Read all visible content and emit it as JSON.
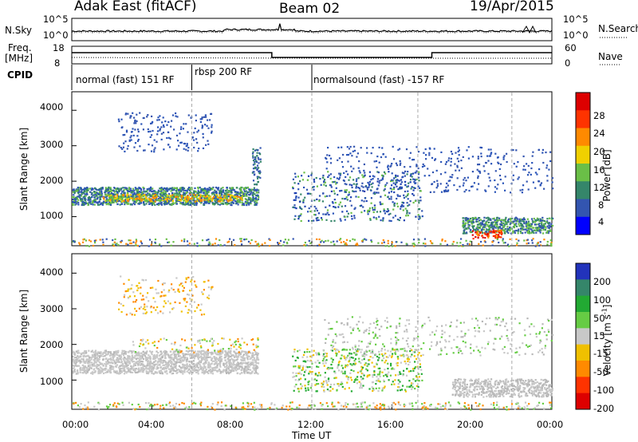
{
  "header": {
    "radar": "Adak East (fitACF)",
    "beam": "Beam 02",
    "date": "19/Apr/2015"
  },
  "noise_panel": {
    "left_label": "N.Sky",
    "right_label": "N.Search",
    "left_ticks": [
      "10^5",
      "10^0"
    ],
    "right_ticks": [
      "10^5",
      "10^0"
    ]
  },
  "freq_panel": {
    "left_label_line1": "Freq.",
    "left_label_line2": "[MHz]",
    "right_label": "Nave",
    "left_ticks": [
      "18",
      "8"
    ],
    "right_ticks": [
      "60",
      "0"
    ]
  },
  "cpid": {
    "label": "CPID",
    "segments": [
      {
        "name": "normal (fast) 151 RF",
        "start_hr": 0.0,
        "end_hr": 6.0
      },
      {
        "name": "rbsp 200 RF",
        "start_hr": 6.0,
        "end_hr": 12.0
      },
      {
        "name": "normalsound (fast) -157 RF",
        "start_hr": 12.0,
        "end_hr": 24.0
      }
    ]
  },
  "chart_data": [
    {
      "type": "heatmap",
      "title": "",
      "xlabel": "",
      "ylabel": "Slant Range [km]",
      "xlim": [
        0,
        24
      ],
      "ylim": [
        180,
        4500
      ],
      "y_ticks": [
        "4000",
        "3000",
        "2000",
        "1000"
      ],
      "colorbar": {
        "label": "Power [dB]",
        "ticks": [
          "28",
          "24",
          "20",
          "16",
          "12",
          "8",
          "4"
        ],
        "colors": [
          "#0000ff",
          "#3355b0",
          "#35866a",
          "#6abf47",
          "#f0d000",
          "#ff8a00",
          "#ff3300",
          "#dd0000"
        ]
      },
      "features": [
        {
          "name": "main band",
          "start_hr": 0.0,
          "end_hr": 9.3,
          "range_km_start": 1450,
          "range_km_end": 1850,
          "peak_dB": 22
        },
        {
          "name": "upper arc",
          "start_hr": 2.3,
          "end_hr": 7.0,
          "range_km_start": 2900,
          "range_km_end": 3900,
          "peak_dB": 8
        },
        {
          "name": "afternoon patches",
          "start_hr": 11.0,
          "end_hr": 17.5,
          "range_km_start": 900,
          "range_km_end": 1600,
          "peak_dB": 12
        },
        {
          "name": "evening band",
          "start_hr": 19.5,
          "end_hr": 24.0,
          "range_km_start": 600,
          "range_km_end": 1000,
          "peak_dB": 30
        }
      ]
    },
    {
      "type": "heatmap",
      "title": "",
      "xlabel": "Time UT",
      "ylabel": "Slant Range [km]",
      "xlim": [
        0,
        24
      ],
      "ylim": [
        180,
        4500
      ],
      "y_ticks": [
        "4000",
        "3000",
        "2000",
        "1000"
      ],
      "x_ticks": [
        "00:00",
        "04:00",
        "08:00",
        "12:00",
        "16:00",
        "20:00",
        "00:00"
      ],
      "colorbar": {
        "label_prefix": "Velocity [m s",
        "label_sup": "-1",
        "label_suffix": "]",
        "ticks": [
          "200",
          "100",
          "50",
          "15",
          "-15",
          "-50",
          "-100",
          "-200"
        ],
        "colors": [
          "#2233bb",
          "#35866a",
          "#22aa33",
          "#66cc44",
          "#c8c8c8",
          "#f0c000",
          "#ff8a00",
          "#ff3300",
          "#dd0000"
        ]
      }
    }
  ]
}
